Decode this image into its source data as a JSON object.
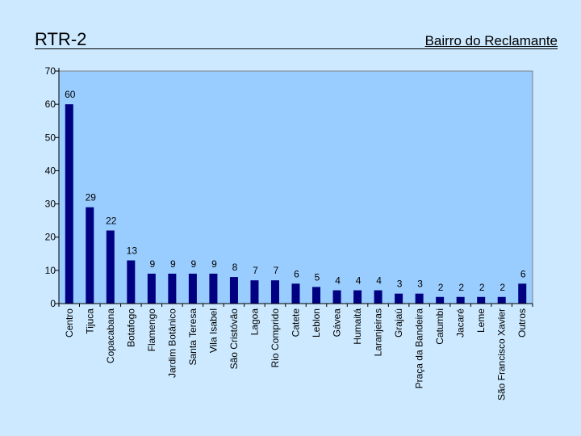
{
  "slide": {
    "title": "RTR-2",
    "subtitle": "Bairro do Reclamante"
  },
  "colors": {
    "background": "#cce9ff",
    "plot_area": "#99ccff",
    "bar": "#000080",
    "axis": "#000000"
  },
  "chart_data": {
    "type": "bar",
    "title": "",
    "xlabel": "",
    "ylabel": "",
    "ylim": [
      0,
      70
    ],
    "yticks": [
      0,
      10,
      20,
      30,
      40,
      50,
      60,
      70
    ],
    "grid": false,
    "categories": [
      "Centro",
      "Tijuca",
      "Copacabana",
      "Botafogo",
      "Flamengo",
      "Jardim Botânico",
      "Santa Teresa",
      "Vila Isabel",
      "São Cristóvão",
      "Lagoa",
      "Rio Comprido",
      "Catete",
      "Leblon",
      "Gávea",
      "Humaitá",
      "Laranjeiras",
      "Grajaú",
      "Praça da Bandeira",
      "Catumbi",
      "Jacaré",
      "Leme",
      "São Francisco Xavier",
      "Outros"
    ],
    "values": [
      60,
      29,
      22,
      13,
      9,
      9,
      9,
      9,
      8,
      7,
      7,
      6,
      5,
      4,
      4,
      4,
      3,
      3,
      2,
      2,
      2,
      2,
      6
    ]
  }
}
